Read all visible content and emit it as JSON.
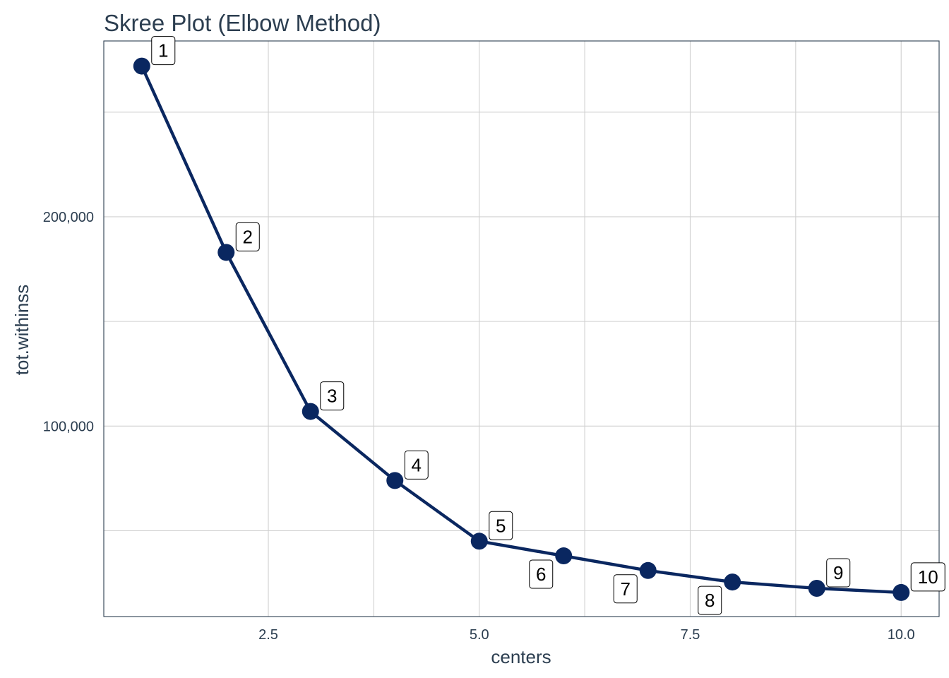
{
  "chart_data": {
    "type": "line",
    "title": "Skree Plot (Elbow Method)",
    "xlabel": "centers",
    "ylabel": "tot.withinss",
    "xlim": [
      0.55,
      10.45
    ],
    "ylim": [
      9000,
      284000
    ],
    "x_ticks": [
      2.5,
      5.0,
      7.5,
      10.0
    ],
    "x_tick_labels": [
      "2.5",
      "5.0",
      "7.5",
      "10.0"
    ],
    "y_ticks": [
      100000,
      200000
    ],
    "y_tick_labels": [
      "100,000",
      "200,000"
    ],
    "grid": true,
    "line_color": "#0a2760",
    "point_color": "#0a2760",
    "series": [
      {
        "x": [
          1,
          2,
          3,
          4,
          5,
          6,
          7,
          8,
          9,
          10
        ],
        "values": [
          272000,
          183000,
          107000,
          74000,
          45000,
          38000,
          31000,
          25500,
          22500,
          20500
        ],
        "labels": [
          "1",
          "2",
          "3",
          "4",
          "5",
          "6",
          "7",
          "8",
          "9",
          "10"
        ],
        "label_side": [
          "above",
          "above",
          "above",
          "above",
          "above",
          "below",
          "below",
          "below",
          "above",
          "above"
        ]
      }
    ]
  }
}
